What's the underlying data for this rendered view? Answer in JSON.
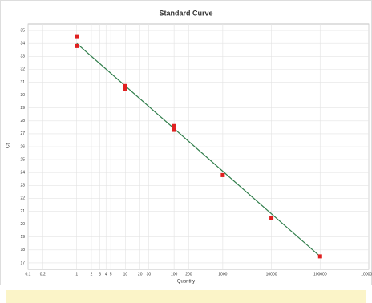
{
  "chart_data": {
    "type": "scatter",
    "title": "Standard Curve",
    "x_label": "Quantity",
    "y_label": "Ct",
    "log_x": true,
    "grid": true,
    "xlim": [
      0.1,
      1000000
    ],
    "ylim": [
      16.5,
      35.5
    ],
    "xticks": [
      0.1,
      0.2,
      1,
      2,
      3,
      4,
      5,
      10,
      20,
      30,
      100,
      200,
      1000,
      10000,
      100000,
      1000000
    ],
    "yticks": [
      17,
      18,
      19,
      20,
      21,
      22,
      23,
      24,
      25,
      26,
      27,
      28,
      29,
      30,
      31,
      32,
      33,
      34,
      35
    ],
    "points": {
      "color": "#e02020",
      "x": [
        1,
        1,
        10,
        10,
        100,
        100,
        1000,
        10000,
        100000
      ],
      "y": [
        34.5,
        33.8,
        30.7,
        30.5,
        27.6,
        27.3,
        23.8,
        20.5,
        17.5
      ]
    },
    "fit_line": {
      "color": "#2f7d4a",
      "x": [
        1,
        100000
      ],
      "y": [
        34.0,
        17.5
      ]
    }
  }
}
